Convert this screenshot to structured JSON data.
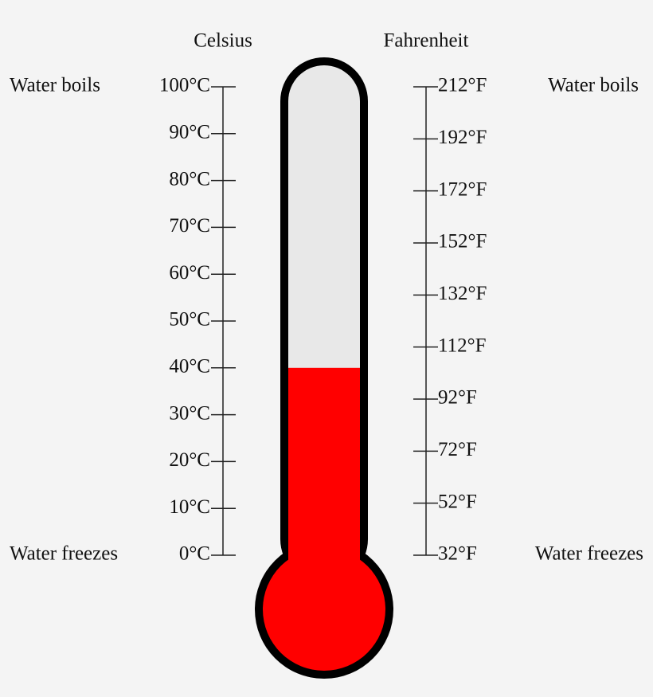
{
  "chart_data": {
    "type": "thermometer",
    "y_label": "Celsius",
    "y2_label": "Fahrenheit",
    "values": [
      40
    ],
    "color": "#ff0000",
    "empty_color": "#e8e8e8",
    "y_color": "#d9305f",
    "y2_color": "#1ea5cc",
    "ylim": [
      0,
      100
    ],
    "yticks": [
      {
        "value": 0,
        "label": "0°C"
      },
      {
        "value": 10,
        "label": "10°C"
      },
      {
        "value": 20,
        "label": "20°C"
      },
      {
        "value": 30,
        "label": "30°C"
      },
      {
        "value": 40,
        "label": "40°C"
      },
      {
        "value": 50,
        "label": "50°C"
      },
      {
        "value": 60,
        "label": "60°C"
      },
      {
        "value": 70,
        "label": "70°C"
      },
      {
        "value": 80,
        "label": "80°C"
      },
      {
        "value": 90,
        "label": "90°C"
      },
      {
        "value": 100,
        "label": "100°C"
      }
    ],
    "y2lim": [
      32,
      212
    ],
    "y2ticks": [
      {
        "value": 32,
        "label": "32°F"
      },
      {
        "value": 52,
        "label": "52°F"
      },
      {
        "value": 72,
        "label": "72°F"
      },
      {
        "value": 92,
        "label": "92°F"
      },
      {
        "value": 112,
        "label": "112°F"
      },
      {
        "value": 132,
        "label": "132°F"
      },
      {
        "value": 152,
        "label": "152°F"
      },
      {
        "value": 172,
        "label": "172°F"
      },
      {
        "value": 192,
        "label": "192°F"
      },
      {
        "value": 212,
        "label": "212°F"
      }
    ],
    "y_annotations": {
      "top": "Water boils",
      "bottom": "Water freezes"
    },
    "y2_annotations": {
      "top": "Water boils",
      "bottom": "Water freezes"
    }
  }
}
